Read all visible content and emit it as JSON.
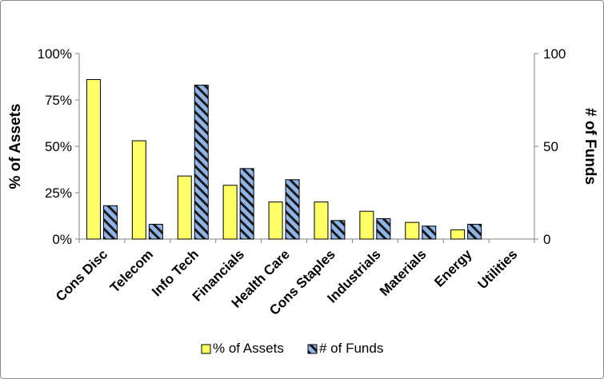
{
  "chart_data": {
    "type": "bar",
    "categories": [
      "Cons Disc",
      "Telecom",
      "Info Tech",
      "Financials",
      "Health Care",
      "Cons Staples",
      "Industrials",
      "Materials",
      "Energy",
      "Utilities"
    ],
    "series": [
      {
        "name": "% of Assets",
        "axis": "left",
        "values": [
          0.86,
          0.53,
          0.34,
          0.29,
          0.2,
          0.2,
          0.15,
          0.09,
          0.05,
          0.0
        ],
        "color": "#ffff66"
      },
      {
        "name": "# of Funds",
        "axis": "right",
        "values": [
          18,
          8,
          83,
          38,
          32,
          10,
          11,
          7,
          8,
          0
        ],
        "color": "#7ea6e0",
        "pattern": "diagonal-stripes"
      }
    ],
    "ylabel": "% of Assets",
    "ylim": [
      0,
      1
    ],
    "yticks": [
      "0%",
      "25%",
      "50%",
      "75%",
      "100%"
    ],
    "y2label": "# of Funds",
    "y2lim": [
      0,
      100
    ],
    "y2ticks": [
      "0",
      "50",
      "100"
    ],
    "legend_position": "bottom",
    "grid": false
  }
}
